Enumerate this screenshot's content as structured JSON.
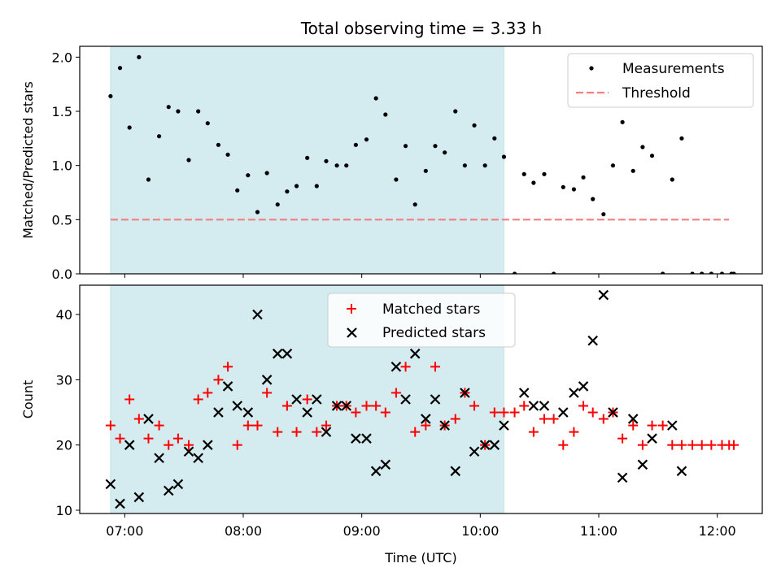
{
  "title": "Total observing time = 3.33 h",
  "colors": {
    "shade": "#d4ebf0",
    "threshold": "#f28080",
    "matched": "#ff0000",
    "predicted": "#000000",
    "measurement": "#000000"
  },
  "chart_data": [
    {
      "type": "scatter",
      "ylabel": "Matched/Predicted stars",
      "xlim": [
        6.62,
        12.38
      ],
      "ylim": [
        0,
        2.1
      ],
      "yticks": [
        "0.0",
        "0.5",
        "1.0",
        "1.5",
        "2.0"
      ],
      "shaded_x_range": [
        6.88,
        10.2
      ],
      "legend": {
        "placement": "upper right",
        "entries": [
          "Measurements",
          "Threshold"
        ]
      },
      "threshold": {
        "name": "Threshold",
        "y": 0.5,
        "x": [
          6.88,
          12.1
        ]
      },
      "series": [
        {
          "name": "Measurements",
          "points": [
            [
              6.88,
              1.64
            ],
            [
              6.96,
              1.9
            ],
            [
              7.04,
              1.35
            ],
            [
              7.12,
              2.0
            ],
            [
              7.2,
              0.87
            ],
            [
              7.29,
              1.27
            ],
            [
              7.37,
              1.54
            ],
            [
              7.45,
              1.5
            ],
            [
              7.54,
              1.05
            ],
            [
              7.62,
              1.5
            ],
            [
              7.7,
              1.39
            ],
            [
              7.79,
              1.19
            ],
            [
              7.87,
              1.1
            ],
            [
              7.95,
              0.77
            ],
            [
              8.04,
              0.91
            ],
            [
              8.12,
              0.57
            ],
            [
              8.2,
              0.93
            ],
            [
              8.29,
              0.64
            ],
            [
              8.37,
              0.76
            ],
            [
              8.45,
              0.81
            ],
            [
              8.54,
              1.07
            ],
            [
              8.62,
              0.81
            ],
            [
              8.7,
              1.04
            ],
            [
              8.79,
              1.0
            ],
            [
              8.87,
              1.0
            ],
            [
              8.95,
              1.19
            ],
            [
              9.04,
              1.24
            ],
            [
              9.12,
              1.62
            ],
            [
              9.2,
              1.47
            ],
            [
              9.29,
              0.87
            ],
            [
              9.37,
              1.18
            ],
            [
              9.45,
              0.64
            ],
            [
              9.54,
              0.95
            ],
            [
              9.62,
              1.18
            ],
            [
              9.7,
              1.12
            ],
            [
              9.79,
              1.5
            ],
            [
              9.87,
              1.0
            ],
            [
              9.95,
              1.37
            ],
            [
              10.04,
              1.0
            ],
            [
              10.12,
              1.25
            ],
            [
              10.2,
              1.08
            ],
            [
              10.29,
              0.0
            ],
            [
              10.37,
              0.92
            ],
            [
              10.45,
              0.84
            ],
            [
              10.54,
              0.92
            ],
            [
              10.62,
              0.0
            ],
            [
              10.7,
              0.8
            ],
            [
              10.79,
              0.78
            ],
            [
              10.87,
              0.89
            ],
            [
              10.95,
              0.69
            ],
            [
              11.04,
              0.55
            ],
            [
              11.12,
              1.0
            ],
            [
              11.2,
              1.4
            ],
            [
              11.29,
              0.95
            ],
            [
              11.37,
              1.17
            ],
            [
              11.45,
              1.09
            ],
            [
              11.54,
              0.0
            ],
            [
              11.62,
              0.87
            ],
            [
              11.7,
              1.25
            ],
            [
              11.79,
              0.0
            ],
            [
              11.87,
              0.0
            ],
            [
              11.95,
              0.0
            ],
            [
              12.04,
              0.0
            ],
            [
              12.12,
              0.0
            ],
            [
              12.14,
              0.0
            ]
          ]
        }
      ]
    },
    {
      "type": "scatter",
      "xlabel": "Time (UTC)",
      "ylabel": "Count",
      "xlim": [
        6.62,
        12.38
      ],
      "ylim": [
        9.5,
        44.5
      ],
      "yticks": [
        "10",
        "20",
        "30",
        "40"
      ],
      "xticks": [
        {
          "value": 7,
          "label": "07:00"
        },
        {
          "value": 8,
          "label": "08:00"
        },
        {
          "value": 9,
          "label": "09:00"
        },
        {
          "value": 10,
          "label": "10:00"
        },
        {
          "value": 11,
          "label": "11:00"
        },
        {
          "value": 12,
          "label": "12:00"
        }
      ],
      "shaded_x_range": [
        6.88,
        10.2
      ],
      "legend": {
        "placement": "upper center",
        "entries": [
          "Matched stars",
          "Predicted stars"
        ]
      },
      "series": [
        {
          "name": "Matched stars",
          "marker": "plus",
          "points": [
            [
              6.88,
              23
            ],
            [
              6.96,
              21
            ],
            [
              7.04,
              27
            ],
            [
              7.12,
              24
            ],
            [
              7.2,
              21
            ],
            [
              7.29,
              23
            ],
            [
              7.37,
              20
            ],
            [
              7.45,
              21
            ],
            [
              7.54,
              20
            ],
            [
              7.62,
              27
            ],
            [
              7.7,
              28
            ],
            [
              7.79,
              30
            ],
            [
              7.87,
              32
            ],
            [
              7.95,
              20
            ],
            [
              8.04,
              23
            ],
            [
              8.12,
              23
            ],
            [
              8.2,
              28
            ],
            [
              8.29,
              22
            ],
            [
              8.37,
              26
            ],
            [
              8.45,
              22
            ],
            [
              8.54,
              27
            ],
            [
              8.62,
              22
            ],
            [
              8.7,
              23
            ],
            [
              8.79,
              26
            ],
            [
              8.87,
              26
            ],
            [
              8.95,
              25
            ],
            [
              9.04,
              26
            ],
            [
              9.12,
              26
            ],
            [
              9.2,
              25
            ],
            [
              9.29,
              28
            ],
            [
              9.37,
              32
            ],
            [
              9.45,
              22
            ],
            [
              9.54,
              23
            ],
            [
              9.62,
              32
            ],
            [
              9.7,
              23
            ],
            [
              9.79,
              24
            ],
            [
              9.87,
              28
            ],
            [
              9.95,
              26
            ],
            [
              10.04,
              20
            ],
            [
              10.12,
              25
            ],
            [
              10.2,
              25
            ],
            [
              10.29,
              25
            ],
            [
              10.37,
              26
            ],
            [
              10.45,
              22
            ],
            [
              10.54,
              24
            ],
            [
              10.62,
              24
            ],
            [
              10.7,
              20
            ],
            [
              10.79,
              22
            ],
            [
              10.87,
              26
            ],
            [
              10.95,
              25
            ],
            [
              11.04,
              24
            ],
            [
              11.12,
              25
            ],
            [
              11.2,
              21
            ],
            [
              11.29,
              23
            ],
            [
              11.37,
              20
            ],
            [
              11.45,
              23
            ],
            [
              11.54,
              23
            ],
            [
              11.62,
              20
            ],
            [
              11.7,
              20
            ],
            [
              11.79,
              20
            ],
            [
              11.87,
              20
            ],
            [
              11.95,
              20
            ],
            [
              12.04,
              20
            ],
            [
              12.1,
              20
            ],
            [
              12.14,
              20
            ]
          ]
        },
        {
          "name": "Predicted stars",
          "marker": "x",
          "points": [
            [
              6.88,
              14
            ],
            [
              6.96,
              11
            ],
            [
              7.04,
              20
            ],
            [
              7.12,
              12
            ],
            [
              7.2,
              24
            ],
            [
              7.29,
              18
            ],
            [
              7.37,
              13
            ],
            [
              7.45,
              14
            ],
            [
              7.54,
              19
            ],
            [
              7.62,
              18
            ],
            [
              7.7,
              20
            ],
            [
              7.79,
              25
            ],
            [
              7.87,
              29
            ],
            [
              7.95,
              26
            ],
            [
              8.04,
              25
            ],
            [
              8.12,
              40
            ],
            [
              8.2,
              30
            ],
            [
              8.29,
              34
            ],
            [
              8.37,
              34
            ],
            [
              8.45,
              27
            ],
            [
              8.54,
              25
            ],
            [
              8.62,
              27
            ],
            [
              8.7,
              22
            ],
            [
              8.79,
              26
            ],
            [
              8.87,
              26
            ],
            [
              8.95,
              21
            ],
            [
              9.04,
              21
            ],
            [
              9.12,
              16
            ],
            [
              9.2,
              17
            ],
            [
              9.29,
              32
            ],
            [
              9.37,
              27
            ],
            [
              9.45,
              34
            ],
            [
              9.54,
              24
            ],
            [
              9.62,
              27
            ],
            [
              9.7,
              23
            ],
            [
              9.79,
              16
            ],
            [
              9.87,
              28
            ],
            [
              9.95,
              19
            ],
            [
              10.04,
              20
            ],
            [
              10.12,
              20
            ],
            [
              10.2,
              23
            ],
            [
              10.37,
              28
            ],
            [
              10.45,
              26
            ],
            [
              10.54,
              26
            ],
            [
              10.7,
              25
            ],
            [
              10.79,
              28
            ],
            [
              10.87,
              29
            ],
            [
              10.95,
              36
            ],
            [
              11.04,
              43
            ],
            [
              11.12,
              25
            ],
            [
              11.2,
              15
            ],
            [
              11.29,
              24
            ],
            [
              11.37,
              17
            ],
            [
              11.45,
              21
            ],
            [
              11.62,
              23
            ],
            [
              11.7,
              16
            ]
          ]
        }
      ]
    }
  ]
}
